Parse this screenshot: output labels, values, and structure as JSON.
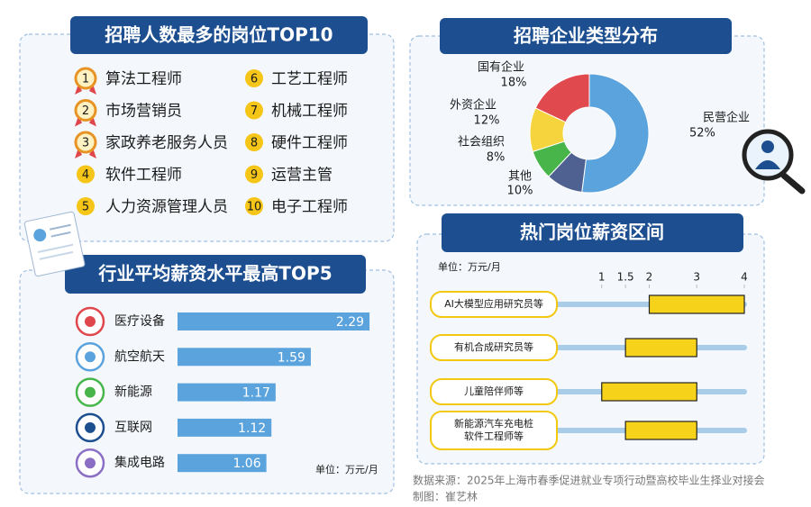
{
  "top10": {
    "title": "招聘人数最多的岗位TOP10",
    "items": [
      {
        "rank": 1,
        "name": "算法工程师"
      },
      {
        "rank": 2,
        "name": "市场营销员"
      },
      {
        "rank": 3,
        "name": "家政养老服务人员"
      },
      {
        "rank": 4,
        "name": "软件工程师"
      },
      {
        "rank": 5,
        "name": "人力资源管理人员"
      },
      {
        "rank": 6,
        "name": "工艺工程师"
      },
      {
        "rank": 7,
        "name": "机械工程师"
      },
      {
        "rank": 8,
        "name": "硬件工程师"
      },
      {
        "rank": 9,
        "name": "运营主管"
      },
      {
        "rank": 10,
        "name": "电子工程师"
      }
    ]
  },
  "chart_data": [
    {
      "type": "pie",
      "title": "招聘企业类型分布",
      "donut": true,
      "categories": [
        "民营企业",
        "其他",
        "社会组织",
        "外资企业",
        "国有企业"
      ],
      "values": [
        52,
        10,
        8,
        12,
        18
      ],
      "value_labels": [
        "52%",
        "10%",
        "8%",
        "12%",
        "18%"
      ],
      "colors": [
        "#5ba3dd",
        "#4f6190",
        "#47b54a",
        "#f6d43e",
        "#e04a4f"
      ]
    },
    {
      "type": "bar",
      "orientation": "horizontal",
      "title": "行业平均薪资水平最高TOP5",
      "unit": "单位：万元/月",
      "categories": [
        "医疗设备",
        "航空航天",
        "新能源",
        "互联网",
        "集成电路"
      ],
      "values": [
        2.29,
        1.59,
        1.17,
        1.12,
        1.06
      ],
      "color": "#5ba3dd",
      "xlim": [
        0,
        2.3
      ]
    },
    {
      "type": "range",
      "title": "热门岗位薪资区间",
      "unit": "单位：万元/月",
      "categories": [
        "AI大模型应用研究员等",
        "有机合成研究员等",
        "儿童陪伴师等",
        "新能源汽车充电桩\n软件工程师等"
      ],
      "low": [
        2,
        1.5,
        1,
        1.5
      ],
      "high": [
        4,
        3,
        3,
        3
      ],
      "color": "#f6d31a",
      "xlim": [
        0,
        4
      ],
      "xticks": [
        1,
        1.5,
        2,
        3,
        4
      ]
    }
  ],
  "source": "数据来源：2025年上海市春季促进就业专项行动暨高校毕业生择业对接会",
  "credit": "制图：崔艺林"
}
